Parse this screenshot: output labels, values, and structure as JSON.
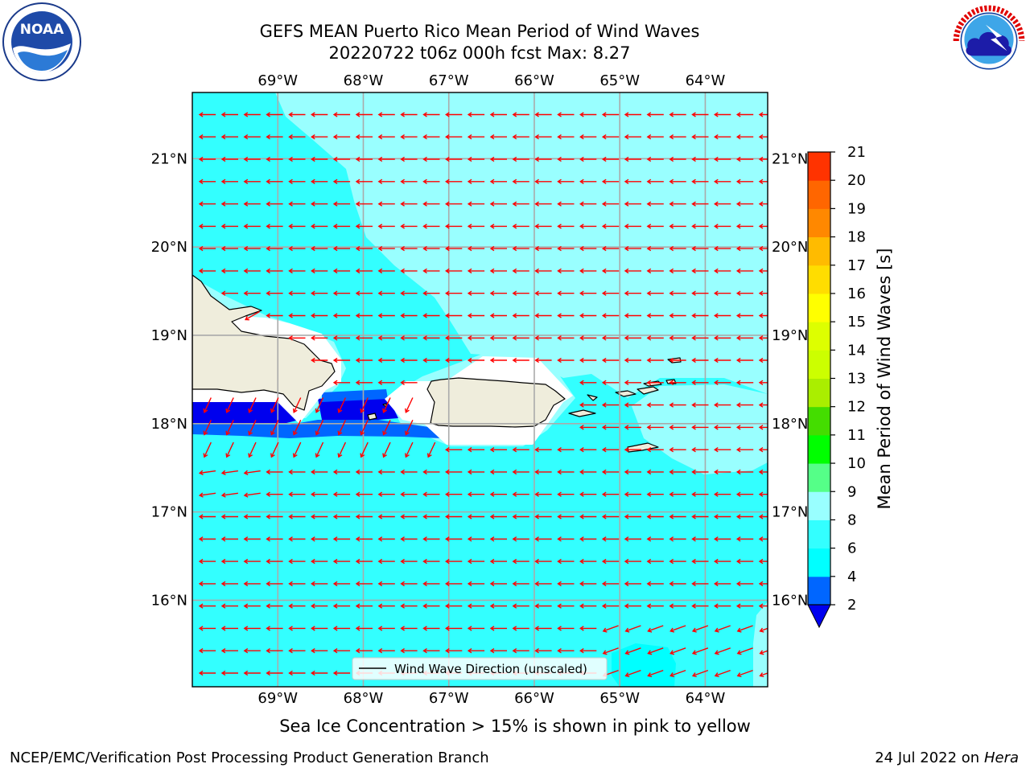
{
  "title": {
    "line1": "GEFS MEAN Puerto Rico Mean Period of Wind Waves",
    "line2": "20220722 t06z 000h fcst   Max: 8.27"
  },
  "subtitle": "Sea Ice Concentration > 15% is shown in pink to yellow",
  "footer": {
    "left": "NCEP/EMC/Verification Post Processing Product Generation Branch",
    "right_date": "24 Jul 2022 on ",
    "right_host": "Hera"
  },
  "logos": {
    "noaa": {
      "label": "NOAA",
      "ring_text": "NATIONAL OCEANIC AND ATMOSPHERIC ADMINISTRATION · U.S. DEPARTMENT OF COMMERCE"
    },
    "nws": {
      "ring_text": "NATIONAL WEATHER SERVICE"
    }
  },
  "chart_data": {
    "type": "heatmap",
    "map": {
      "lon_range": [
        -70,
        -63.27
      ],
      "lat_range": [
        15.02,
        21.75
      ],
      "lon_ticks": [
        -69,
        -68,
        -67,
        -66,
        -65,
        -64
      ],
      "lon_tick_labels": [
        "69°W",
        "68°W",
        "67°W",
        "66°W",
        "65°W",
        "64°W"
      ],
      "lat_ticks": [
        16,
        17,
        18,
        19,
        20,
        21
      ],
      "lat_tick_labels": [
        "16°N",
        "17°N",
        "18°N",
        "19°N",
        "20°N",
        "21°N"
      ],
      "grid": true
    },
    "colorbar": {
      "label": "Mean Period of Wind Waves [s]",
      "ticks": [
        2,
        4,
        6,
        8,
        9,
        10,
        11,
        12,
        13,
        14,
        15,
        16,
        17,
        18,
        19,
        20,
        21
      ],
      "tick_labels": [
        "2",
        "4",
        "6",
        "8",
        "9",
        "10",
        "11",
        "12",
        "13",
        "14",
        "15",
        "16",
        "17",
        "18",
        "19",
        "20",
        "21"
      ],
      "colors": [
        "#0066ff",
        "#00ffff",
        "#33ffff",
        "#99ffff",
        "#55ff88",
        "#00ff00",
        "#44dd00",
        "#aaee00",
        "#ccff00",
        "#ddff00",
        "#ffff00",
        "#ffdd00",
        "#ffbb00",
        "#ff8800",
        "#ff6600",
        "#ff3300"
      ],
      "under_color": "#0000ee",
      "extend": "min"
    },
    "field_colors": {
      "below_2": "#0000ee",
      "from_2_to_4": "#0066ff",
      "from_6_to_8": "#33ffff",
      "from_8_to_9": "#99ffff",
      "land": "#efeddc",
      "no_data": "#ffffff"
    },
    "max_value": 8.27,
    "vector_field": {
      "name": "Wind Wave Direction (unscaled)",
      "color": "#ff0000",
      "lon_start": -69.82,
      "lon_step": 0.262,
      "lat_start": 21.5,
      "lat_step": -0.253,
      "cols": 27,
      "rows": 27,
      "direction": "toward west (easterly waves), veering southwest along the south coasts"
    },
    "legend": {
      "label": "Wind Wave Direction (unscaled)",
      "placement": "bottom-center"
    }
  }
}
